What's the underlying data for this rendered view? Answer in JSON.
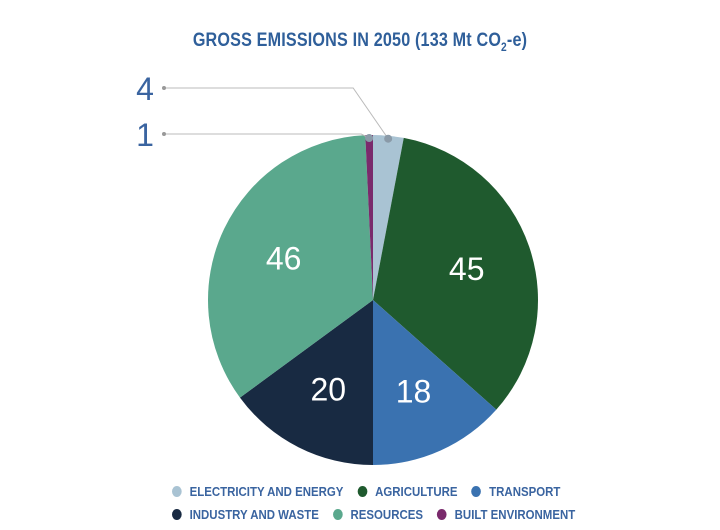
{
  "chart_data": {
    "type": "pie",
    "title": "GROSS EMISSIONS IN 2050 (133 Mt CO",
    "title_sub": "2",
    "title_end": "-e)",
    "slices": [
      {
        "label": "ELECTRICITY AND ENERGY",
        "value": 4,
        "color": "#a9c3d3",
        "label_outside": true
      },
      {
        "label": "AGRICULTURE",
        "value": 45,
        "color": "#1f5a2e"
      },
      {
        "label": "TRANSPORT",
        "value": 18,
        "color": "#3a72b0"
      },
      {
        "label": "INDUSTRY AND WASTE",
        "value": 20,
        "color": "#182a42"
      },
      {
        "label": "RESOURCES",
        "value": 46,
        "color": "#5aa88d"
      },
      {
        "label": "BUILT ENVIRONMENT",
        "value": 1,
        "color": "#7a2a6c",
        "label_outside": true
      }
    ],
    "legend_position": "bottom"
  }
}
